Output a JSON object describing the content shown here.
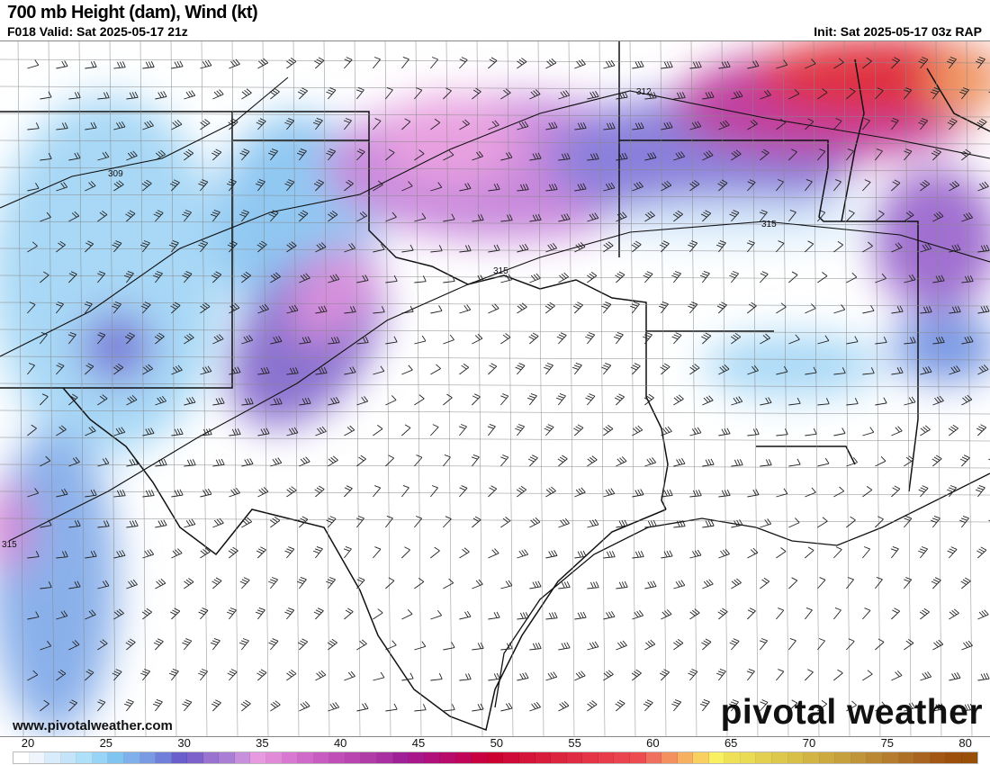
{
  "header": {
    "title": "700 mb Height (dam), Wind (kt)",
    "valid": "F018 Valid: Sat 2025-05-17 21z",
    "init": "Init: Sat 2025-05-17 03z RAP"
  },
  "map": {
    "contour_labels": [
      "309",
      "312",
      "315",
      "315",
      "315"
    ],
    "watermark_url": "www.pivotalweather.com",
    "logo_text": "pivotal weather"
  },
  "colorbar": {
    "ticks": [
      "20",
      "25",
      "30",
      "35",
      "40",
      "45",
      "50",
      "55",
      "60",
      "65",
      "70",
      "75",
      "80"
    ],
    "colors": [
      "#ffffff",
      "#eef5fd",
      "#d8ecfb",
      "#c4e4fa",
      "#aee0fa",
      "#98d4f7",
      "#80c4f2",
      "#7fb0ec",
      "#7a9ae4",
      "#6f7fda",
      "#6a5ecc",
      "#7e62cc",
      "#9a72d0",
      "#a97ed4",
      "#c890dc",
      "#e79ae0",
      "#e08ad8",
      "#d878d0",
      "#d06ac8",
      "#c85cc0",
      "#c050b8",
      "#b845b0",
      "#b03ca8",
      "#a830a0",
      "#a02098",
      "#a8188a",
      "#b0107a",
      "#b80a6a",
      "#c00558",
      "#c80040",
      "#cc0030",
      "#d00a38",
      "#d41438",
      "#d81c3c",
      "#dc243e",
      "#e02c42",
      "#e43446",
      "#e83c4a",
      "#ea444e",
      "#ec4c50",
      "#f07060",
      "#f49060",
      "#f6b060",
      "#f8d060",
      "#f8f060",
      "#f0e058",
      "#eadb54",
      "#e4d050",
      "#dec84c",
      "#d8c048",
      "#d2b444",
      "#ccaa40",
      "#c6a03c",
      "#c09438",
      "#ba8832",
      "#b47c2c",
      "#ae7026",
      "#a86420",
      "#a25814",
      "#9c500c",
      "#985008"
    ]
  }
}
